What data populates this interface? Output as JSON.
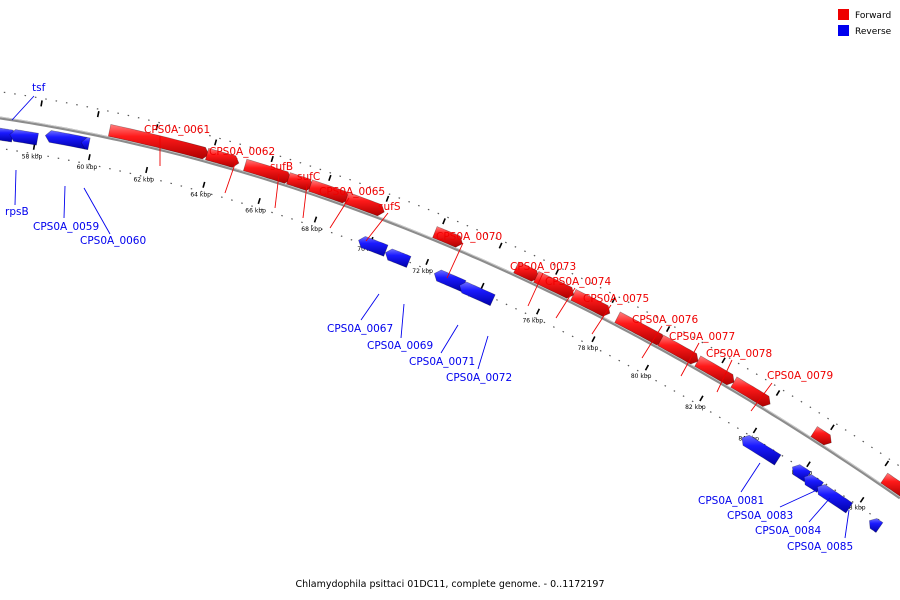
{
  "caption": "Chlamydophila psittaci 01DC11, complete genome. - 0..1172197",
  "legend": [
    {
      "label": "Forward",
      "color": "#ee0000"
    },
    {
      "label": "Reverse",
      "color": "#0000ee"
    }
  ],
  "colors": {
    "forward": "#ee0000",
    "reverse": "#0000ee",
    "backbone": "#8c8c8c"
  },
  "ticks": [
    {
      "label": "58 kbp",
      "kb": 58
    },
    {
      "label": "60 kbp",
      "kb": 60
    },
    {
      "label": "62 kbp",
      "kb": 62
    },
    {
      "label": "64 kbp",
      "kb": 64
    },
    {
      "label": "66 kbp",
      "kb": 66
    },
    {
      "label": "68 kbp",
      "kb": 68
    },
    {
      "label": "70 kbp",
      "kb": 70
    },
    {
      "label": "72 kbp",
      "kb": 72
    },
    {
      "label": "74 kbp",
      "kb": 74
    },
    {
      "label": "76 kbp",
      "kb": 76
    },
    {
      "label": "78 kbp",
      "kb": 78
    },
    {
      "label": "80 kbp",
      "kb": 80
    },
    {
      "label": "82 kbp",
      "kb": 82
    },
    {
      "label": "84 kbp",
      "kb": 84
    },
    {
      "label": "86 kbp",
      "kb": 86
    },
    {
      "label": "88 kbp",
      "kb": 88
    }
  ],
  "forward_genes": [
    {
      "label": "CPS0A_0061"
    },
    {
      "label": "CPS0A_0062"
    },
    {
      "label": "sufB"
    },
    {
      "label": "sufC"
    },
    {
      "label": "CPS0A_0065"
    },
    {
      "label": "sufS"
    },
    {
      "label": "CPS0A_0070"
    },
    {
      "label": "CPS0A_0073"
    },
    {
      "label": "CPS0A_0074"
    },
    {
      "label": "CPS0A_0075"
    },
    {
      "label": "CPS0A_0076"
    },
    {
      "label": "CPS0A_0077"
    },
    {
      "label": "CPS0A_0078"
    },
    {
      "label": "CPS0A_0079"
    },
    {
      "label": ""
    },
    {
      "label": ""
    }
  ],
  "reverse_genes": [
    {
      "label": ""
    },
    {
      "label": "rpsB"
    },
    {
      "label": "CPS0A_0059"
    },
    {
      "label": "CPS0A_0060"
    },
    {
      "label": "CPS0A_0067"
    },
    {
      "label": "CPS0A_0069"
    },
    {
      "label": "CPS0A_0071"
    },
    {
      "label": "CPS0A_0072"
    },
    {
      "label": "CPS0A_0081"
    },
    {
      "label": "CPS0A_0083"
    },
    {
      "label": "CPS0A_0084"
    },
    {
      "label": "CPS0A_0085"
    },
    {
      "label": ""
    }
  ],
  "top_label": "tsf"
}
